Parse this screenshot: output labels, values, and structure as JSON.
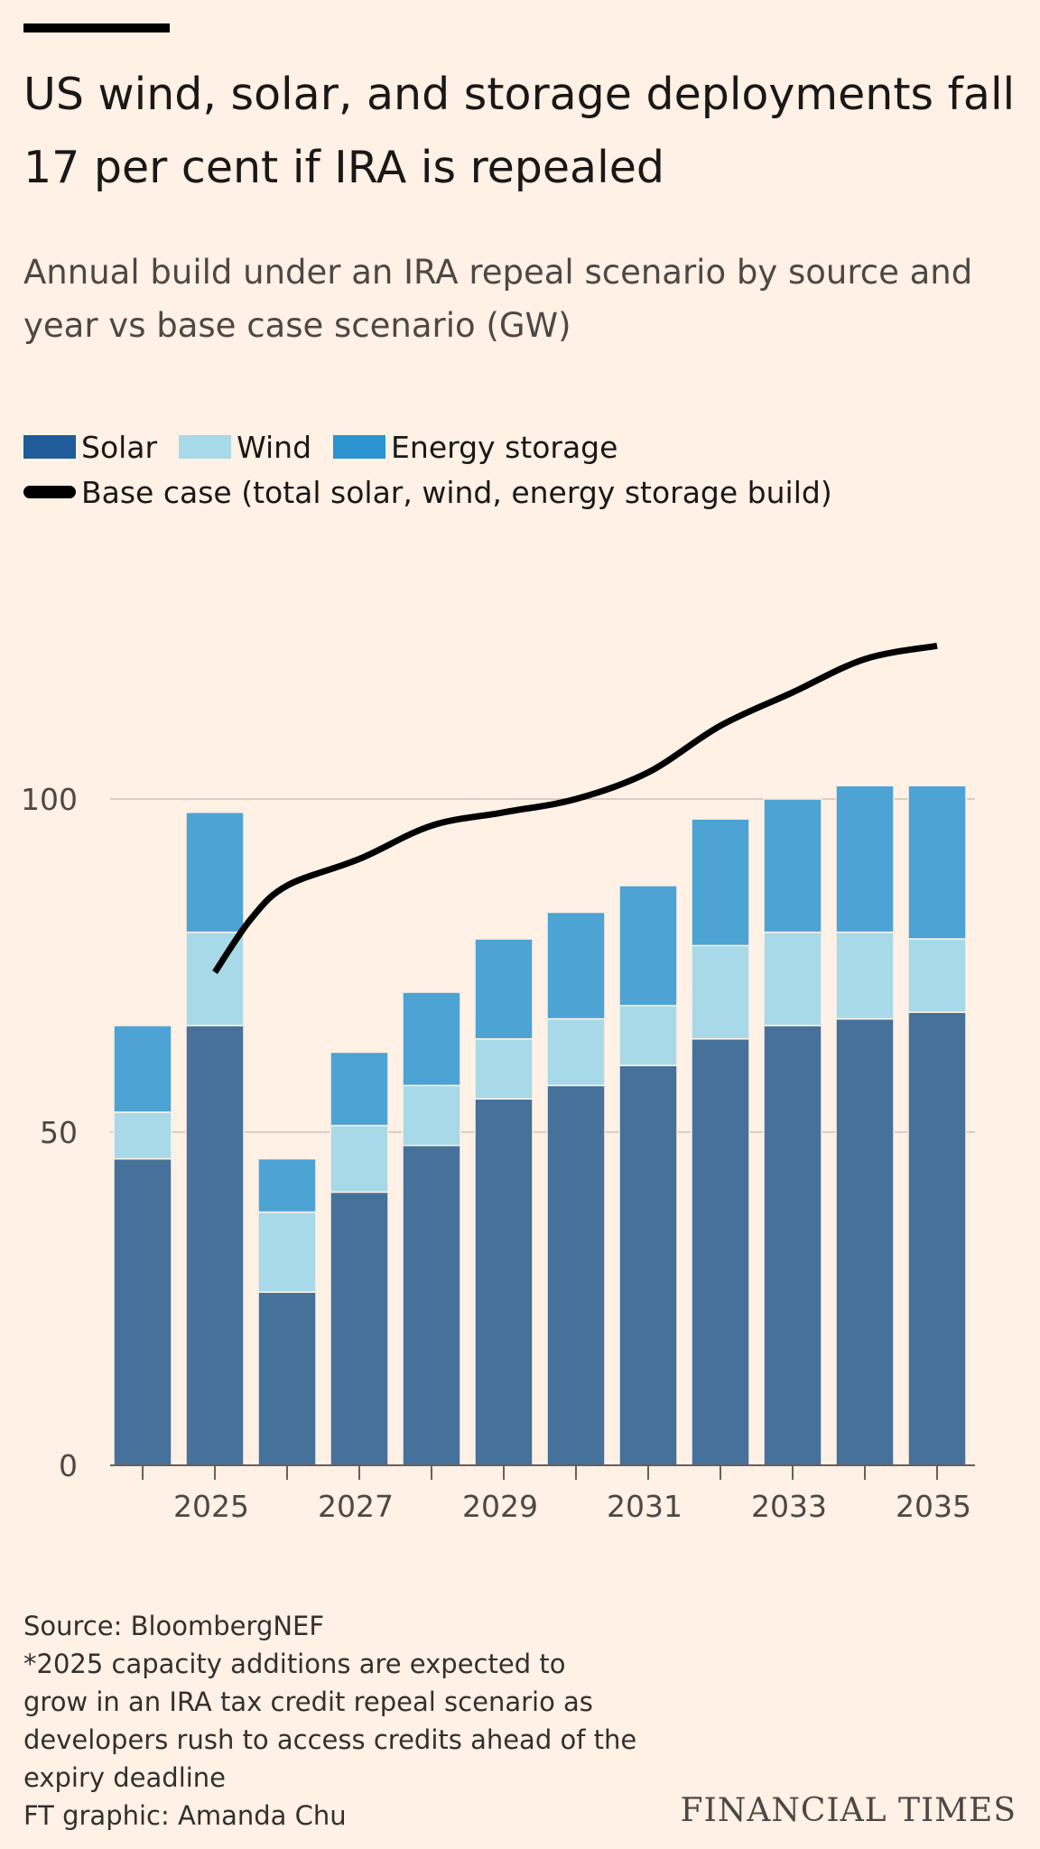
{
  "header": {
    "title": "US wind, solar, and storage deployments fall 17 per cent if IRA is repealed",
    "subtitle": "Annual build under an IRA repeal scenario by source and year vs base case scenario (GW)"
  },
  "legend": {
    "solar": "Solar",
    "wind": "Wind",
    "storage": "Energy storage",
    "base": "Base case (total solar, wind, energy storage build)"
  },
  "colors": {
    "solar": "#46719A",
    "wind": "#A8D9E8",
    "storage": "#4DA3D3",
    "solar_swatch": "#1F5C99",
    "storage_swatch": "#2B94D1",
    "base_line": "#000000",
    "grid": "#D9CEC3",
    "axis": "#66605C"
  },
  "chart_data": {
    "type": "bar",
    "stacked": true,
    "x": [
      2024,
      2025,
      2026,
      2027,
      2028,
      2029,
      2030,
      2031,
      2032,
      2033,
      2034,
      2035
    ],
    "x_tick_labels": [
      "2025",
      "2027",
      "2029",
      "2031",
      "2033",
      "2035"
    ],
    "y_ticks": [
      0,
      50,
      100
    ],
    "ylim": [
      0,
      125
    ],
    "series": [
      {
        "name": "Solar",
        "values": [
          46,
          66,
          26,
          41,
          48,
          55,
          57,
          60,
          64,
          66,
          67,
          68
        ]
      },
      {
        "name": "Wind",
        "values": [
          7,
          14,
          12,
          10,
          9,
          9,
          10,
          9,
          14,
          14,
          13,
          11
        ]
      },
      {
        "name": "Energy storage",
        "values": [
          13,
          18,
          8,
          11,
          14,
          15,
          16,
          18,
          19,
          20,
          22,
          23
        ]
      }
    ],
    "line": {
      "name": "Base case (total solar, wind, energy storage build)",
      "x": [
        2025,
        2025.5,
        2026,
        2027,
        2028,
        2029,
        2030,
        2031,
        2032,
        2033,
        2034,
        2035
      ],
      "values": [
        74,
        82,
        87,
        91,
        96,
        98,
        100,
        104,
        111,
        116,
        121,
        123
      ]
    }
  },
  "footer": {
    "source": "Source: BloombergNEF",
    "note": "*2025 capacity additions are expected to grow in an IRA tax credit repeal scenario as developers rush to access credits ahead of the expiry deadline",
    "credit": "FT graphic: Amanda Chu",
    "brand": "FINANCIAL TIMES"
  }
}
